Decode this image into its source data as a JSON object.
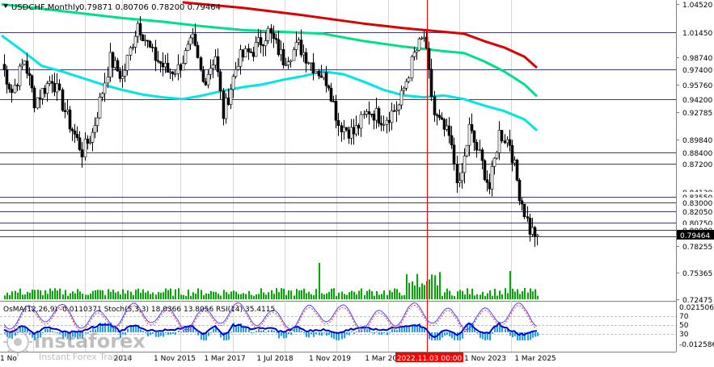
{
  "header": {
    "symbol_label": "USDCHF,Monthly",
    "ohlc": "0.79871 0.80706 0.78200 0.79464",
    "indicators_label": "OsMA(12,26,9) -0.0110371 Stoch(5,3,3) 18.0366 13.8056 RSI(14) 35.4115"
  },
  "watermark": {
    "brand": "instaforex",
    "tagline": "Instant Forex Trading"
  },
  "colors": {
    "candle": "#000000",
    "ma_fast": "#00e5e5",
    "ma_mid": "#00e08a",
    "ma_slow": "#dd0000",
    "highlight_vline": "#ff0000",
    "volume": "#00aa00",
    "osma_hist": "#1ea0f0",
    "macd_signal": "#0000cc",
    "stoch_main": "#4444ff",
    "stoch_signal": "#ff3333",
    "current_price_box": "#000000"
  },
  "chart_data": {
    "type": "candlestick",
    "symbol": "USDCHF",
    "timeframe": "Monthly",
    "ylim": [
      0.7247,
      1.0452
    ],
    "x_tick_labels": [
      "1 Nov 2015",
      "1 Mar 2017",
      "1 Jul 2018",
      "1 Nov 2019",
      "1 Mar 202",
      "2022.11.03 00:00",
      "1 Nov 2023",
      "1 Mar 2025"
    ],
    "x_tick_highlighted": "2022.11.03 00:00",
    "x_tick_partial_left": [
      "1 No",
      "2014"
    ],
    "y_tick_labels": [
      {
        "label": "1.04520",
        "value": 1.0452
      },
      {
        "label": "1.01450",
        "value": 1.0145,
        "level": true
      },
      {
        "label": "0.98740",
        "value": 0.9874
      },
      {
        "label": "0.97400",
        "value": 0.974,
        "level": true
      },
      {
        "label": "0.95760",
        "value": 0.9576
      },
      {
        "label": "0.94200",
        "value": 0.942,
        "level": true
      },
      {
        "label": "0.92785",
        "value": 0.92785
      },
      {
        "label": "0.89840",
        "value": 0.8984
      },
      {
        "label": "0.88400",
        "value": 0.884,
        "level": true
      },
      {
        "label": "0.87200",
        "value": 0.872,
        "level": true
      },
      {
        "label": "0.84130",
        "value": 0.8413
      },
      {
        "label": "0.83550",
        "value": 0.8355,
        "level": true
      },
      {
        "label": "0.83000",
        "value": 0.83,
        "level": true
      },
      {
        "label": "0.82050",
        "value": 0.8205,
        "level": true
      },
      {
        "label": "0.80750",
        "value": 0.8075,
        "level": true
      },
      {
        "label": "0.80000",
        "value": 0.8,
        "level": true
      },
      {
        "label": "0.79330",
        "value": 0.7933,
        "level": true
      },
      {
        "label": "0.78255",
        "value": 0.78255
      },
      {
        "label": "0.75365",
        "value": 0.75365
      },
      {
        "label": "0.72475",
        "value": 0.72475
      }
    ],
    "current_price": {
      "label": "0.79464",
      "value": 0.79464
    },
    "horizontal_levels": [
      1.0145,
      0.974,
      0.942,
      0.884,
      0.872,
      0.8355,
      0.83,
      0.8205,
      0.8075,
      0.8,
      0.7933
    ],
    "moving_averages": [
      {
        "key": "fast",
        "points": [
          [
            0,
            1.011
          ],
          [
            8,
            0.995
          ],
          [
            16,
            0.978
          ],
          [
            24,
            0.972
          ],
          [
            32,
            0.965
          ],
          [
            40,
            0.958
          ],
          [
            48,
            0.952
          ],
          [
            56,
            0.947
          ],
          [
            64,
            0.944
          ],
          [
            72,
            0.942
          ],
          [
            80,
            0.946
          ],
          [
            88,
            0.951
          ],
          [
            96,
            0.955
          ],
          [
            104,
            0.958
          ],
          [
            112,
            0.963
          ],
          [
            120,
            0.967
          ],
          [
            128,
            0.972
          ],
          [
            136,
            0.969
          ],
          [
            144,
            0.961
          ],
          [
            152,
            0.952
          ],
          [
            160,
            0.946
          ],
          [
            168,
            0.944
          ],
          [
            176,
            0.946
          ],
          [
            184,
            0.942
          ],
          [
            192,
            0.935
          ],
          [
            200,
            0.929
          ],
          [
            208,
            0.92
          ],
          [
            213,
            0.908
          ]
        ]
      },
      {
        "key": "mid",
        "points": [
          [
            0,
            1.045
          ],
          [
            16,
            1.04
          ],
          [
            32,
            1.035
          ],
          [
            48,
            1.03
          ],
          [
            64,
            1.026
          ],
          [
            80,
            1.021
          ],
          [
            96,
            1.017
          ],
          [
            112,
            1.015
          ],
          [
            128,
            1.013
          ],
          [
            144,
            1.005
          ],
          [
            160,
            0.999
          ],
          [
            176,
            0.994
          ],
          [
            184,
            0.992
          ],
          [
            192,
            0.983
          ],
          [
            200,
            0.972
          ],
          [
            208,
            0.958
          ],
          [
            213,
            0.945
          ]
        ]
      },
      {
        "key": "slow",
        "points": [
          [
            72,
            1.047
          ],
          [
            96,
            1.041
          ],
          [
            120,
            1.033
          ],
          [
            144,
            1.024
          ],
          [
            160,
            1.019
          ],
          [
            176,
            1.015
          ],
          [
            184,
            1.013
          ],
          [
            192,
            1.005
          ],
          [
            200,
            0.998
          ],
          [
            208,
            0.988
          ],
          [
            213,
            0.976
          ]
        ]
      }
    ],
    "candles_monthly_segments": [
      {
        "from": 0,
        "to": 4,
        "open": 0.98,
        "close": 0.95
      },
      {
        "from": 4,
        "to": 9,
        "open": 0.95,
        "close": 0.985
      },
      {
        "from": 9,
        "to": 13,
        "open": 0.985,
        "close": 0.94
      },
      {
        "from": 13,
        "to": 20,
        "open": 0.94,
        "close": 0.965
      },
      {
        "from": 20,
        "to": 27,
        "open": 0.965,
        "close": 0.915
      },
      {
        "from": 27,
        "to": 32,
        "open": 0.915,
        "close": 0.885
      },
      {
        "from": 32,
        "to": 36,
        "open": 0.885,
        "close": 0.905
      },
      {
        "from": 36,
        "to": 43,
        "open": 0.905,
        "close": 0.985
      },
      {
        "from": 43,
        "to": 48,
        "open": 0.985,
        "close": 0.965
      },
      {
        "from": 48,
        "to": 54,
        "open": 0.965,
        "close": 1.025
      },
      {
        "from": 54,
        "to": 60,
        "open": 1.025,
        "close": 0.99
      },
      {
        "from": 60,
        "to": 66,
        "open": 0.99,
        "close": 0.972
      },
      {
        "from": 66,
        "to": 70,
        "open": 0.972,
        "close": 0.975
      },
      {
        "from": 70,
        "to": 76,
        "open": 0.975,
        "close": 1.005
      },
      {
        "from": 76,
        "to": 80,
        "open": 1.005,
        "close": 0.96
      },
      {
        "from": 80,
        "to": 85,
        "open": 0.96,
        "close": 0.99
      },
      {
        "from": 85,
        "to": 88,
        "open": 0.99,
        "close": 0.925
      },
      {
        "from": 88,
        "to": 94,
        "open": 0.925,
        "close": 0.985
      },
      {
        "from": 94,
        "to": 100,
        "open": 0.985,
        "close": 0.995
      },
      {
        "from": 100,
        "to": 106,
        "open": 0.995,
        "close": 1.015
      },
      {
        "from": 106,
        "to": 112,
        "open": 1.015,
        "close": 0.985
      },
      {
        "from": 112,
        "to": 118,
        "open": 0.985,
        "close": 1.0
      },
      {
        "from": 118,
        "to": 124,
        "open": 1.0,
        "close": 0.978
      },
      {
        "from": 124,
        "to": 130,
        "open": 0.978,
        "close": 0.96
      },
      {
        "from": 130,
        "to": 134,
        "open": 0.96,
        "close": 0.915
      },
      {
        "from": 134,
        "to": 140,
        "open": 0.915,
        "close": 0.905
      },
      {
        "from": 140,
        "to": 146,
        "open": 0.905,
        "close": 0.93
      },
      {
        "from": 146,
        "to": 152,
        "open": 0.93,
        "close": 0.92
      },
      {
        "from": 152,
        "to": 158,
        "open": 0.92,
        "close": 0.935
      },
      {
        "from": 158,
        "to": 164,
        "open": 0.935,
        "close": 0.99
      },
      {
        "from": 164,
        "to": 168,
        "open": 0.99,
        "close": 1.01
      },
      {
        "from": 168,
        "to": 172,
        "open": 1.01,
        "close": 0.925
      },
      {
        "from": 172,
        "to": 178,
        "open": 0.925,
        "close": 0.9
      },
      {
        "from": 178,
        "to": 182,
        "open": 0.9,
        "close": 0.845
      },
      {
        "from": 182,
        "to": 186,
        "open": 0.845,
        "close": 0.91
      },
      {
        "from": 186,
        "to": 190,
        "open": 0.91,
        "close": 0.88
      },
      {
        "from": 190,
        "to": 194,
        "open": 0.88,
        "close": 0.845
      },
      {
        "from": 194,
        "to": 198,
        "open": 0.845,
        "close": 0.905
      },
      {
        "from": 198,
        "to": 202,
        "open": 0.905,
        "close": 0.895
      },
      {
        "from": 202,
        "to": 206,
        "open": 0.895,
        "close": 0.84
      },
      {
        "from": 206,
        "to": 210,
        "open": 0.84,
        "close": 0.8
      },
      {
        "from": 210,
        "to": 213,
        "open": 0.8,
        "close": 0.795
      }
    ],
    "subwindow": {
      "osma_ylim": [
        -0.012586,
        0.021506
      ],
      "osma_tick_labels": [
        "0.021506",
        "-0.012586"
      ],
      "rsi_stoch_tick_labels": [
        "70",
        "50",
        "30"
      ],
      "levels": [
        70,
        50,
        30
      ]
    }
  }
}
